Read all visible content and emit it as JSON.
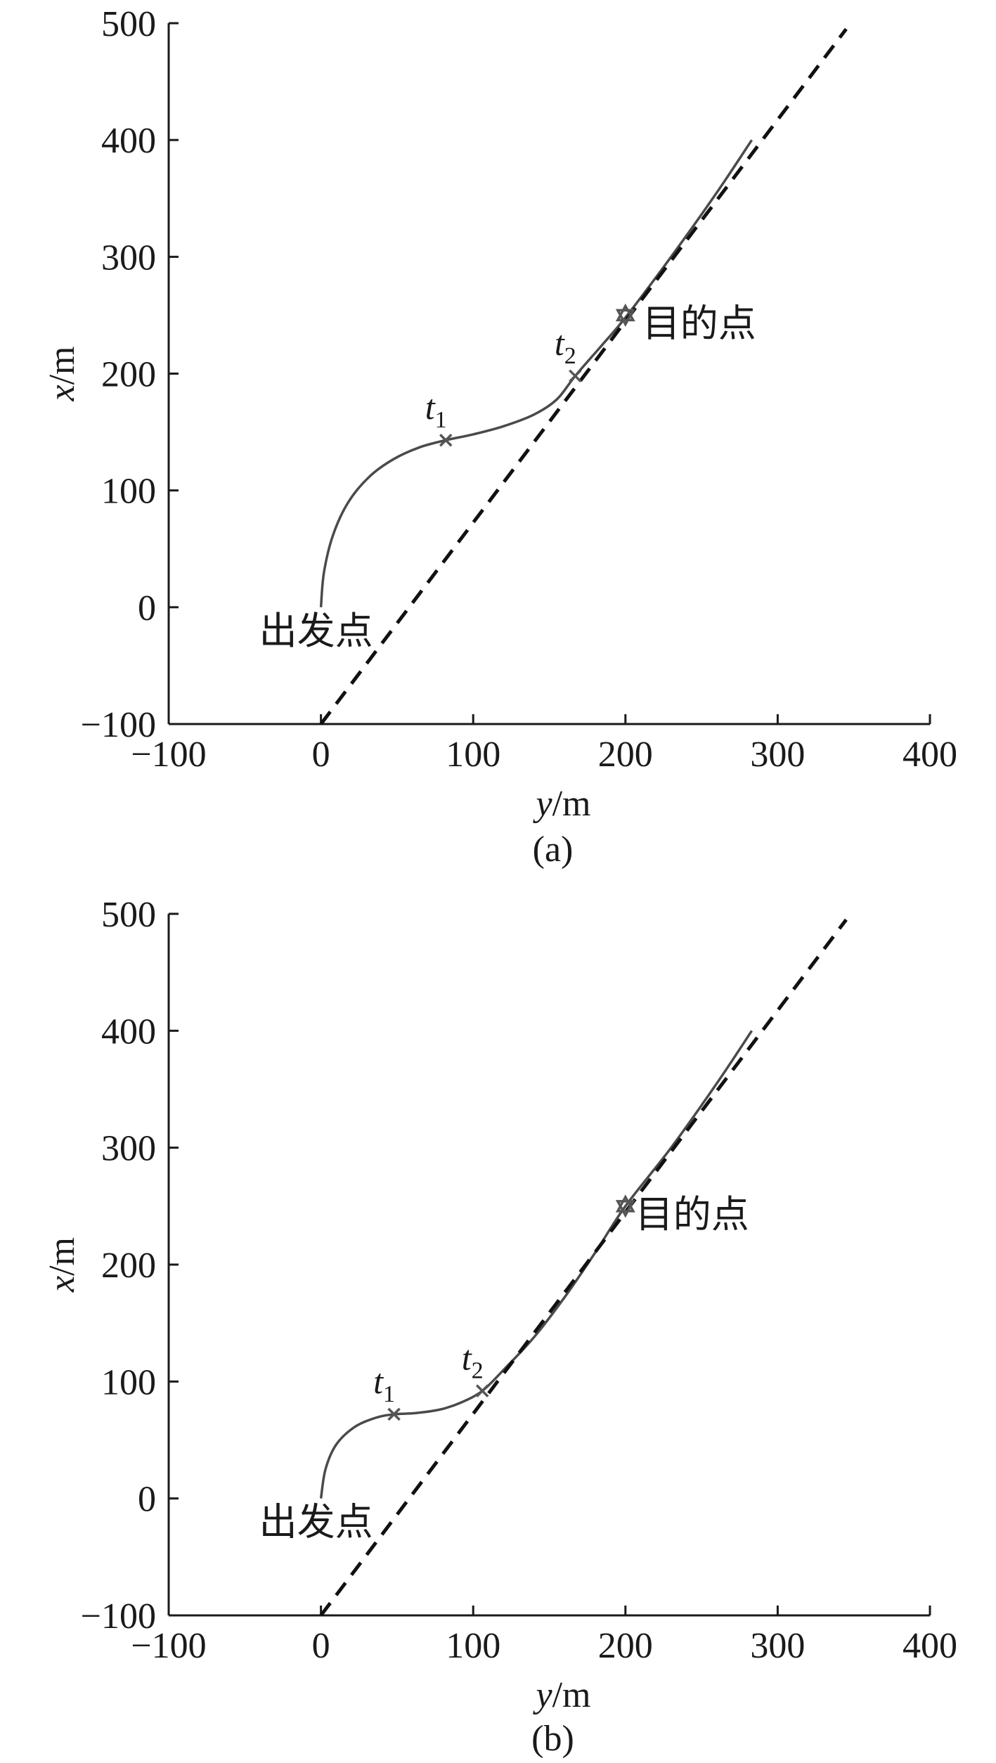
{
  "chart_data": [
    {
      "type": "line",
      "caption": "(a)",
      "xlabel": "y/m",
      "ylabel": "x/m",
      "xlim": [
        -100,
        400
      ],
      "ylim": [
        -100,
        500
      ],
      "xticks": [
        -100,
        0,
        100,
        200,
        300,
        400
      ],
      "yticks": [
        -100,
        0,
        100,
        200,
        300,
        400,
        500
      ],
      "grid": false,
      "series": [
        {
          "style": "solid",
          "x": [
            0,
            2,
            8,
            18,
            32,
            48,
            65,
            82,
            100,
            120,
            140,
            155,
            167,
            185,
            200,
            230,
            260,
            283
          ],
          "y": [
            0,
            30,
            62,
            90,
            112,
            127,
            137,
            143,
            148,
            155,
            165,
            178,
            198,
            225,
            248,
            300,
            355,
            400
          ]
        },
        {
          "style": "dashed",
          "x": [
            0,
            345
          ],
          "y": [
            -100,
            495
          ]
        }
      ],
      "markers": [
        {
          "label": "t",
          "sub": "1",
          "x": 82,
          "y": 143,
          "shape": "x"
        },
        {
          "label": "t",
          "sub": "2",
          "x": 167,
          "y": 198,
          "shape": "x"
        },
        {
          "label": "目的点",
          "x": 200,
          "y": 250,
          "shape": "star"
        }
      ],
      "annotations": [
        {
          "text": "出发点",
          "x": 0,
          "y": 0
        },
        {
          "text": "目的点",
          "x": 200,
          "y": 250
        }
      ]
    },
    {
      "type": "line",
      "caption": "(b)",
      "xlabel": "y/m",
      "ylabel": "x/m",
      "xlim": [
        -100,
        400
      ],
      "ylim": [
        -100,
        500
      ],
      "xticks": [
        -100,
        0,
        100,
        200,
        300,
        400
      ],
      "yticks": [
        -100,
        0,
        100,
        200,
        300,
        400,
        500
      ],
      "grid": false,
      "series": [
        {
          "style": "solid",
          "x": [
            0,
            3,
            10,
            22,
            36,
            48,
            62,
            78,
            92,
            106,
            120,
            140,
            160,
            180,
            200,
            230,
            260,
            283
          ],
          "y": [
            0,
            25,
            46,
            61,
            69,
            72,
            73,
            76,
            82,
            92,
            110,
            138,
            172,
            210,
            250,
            300,
            355,
            400
          ]
        },
        {
          "style": "dashed",
          "x": [
            0,
            345
          ],
          "y": [
            -100,
            495
          ]
        }
      ],
      "markers": [
        {
          "label": "t",
          "sub": "1",
          "x": 48,
          "y": 72,
          "shape": "x"
        },
        {
          "label": "t",
          "sub": "2",
          "x": 106,
          "y": 92,
          "shape": "x"
        },
        {
          "label": "目的点",
          "x": 200,
          "y": 250,
          "shape": "star"
        }
      ],
      "annotations": [
        {
          "text": "出发点",
          "x": 0,
          "y": 0
        },
        {
          "text": "目的点",
          "x": 200,
          "y": 250
        }
      ]
    }
  ],
  "colors": {
    "curve": "#4a4a4a",
    "dashed": "#111111",
    "axis": "#1a1a1a",
    "marker": "#555555"
  }
}
